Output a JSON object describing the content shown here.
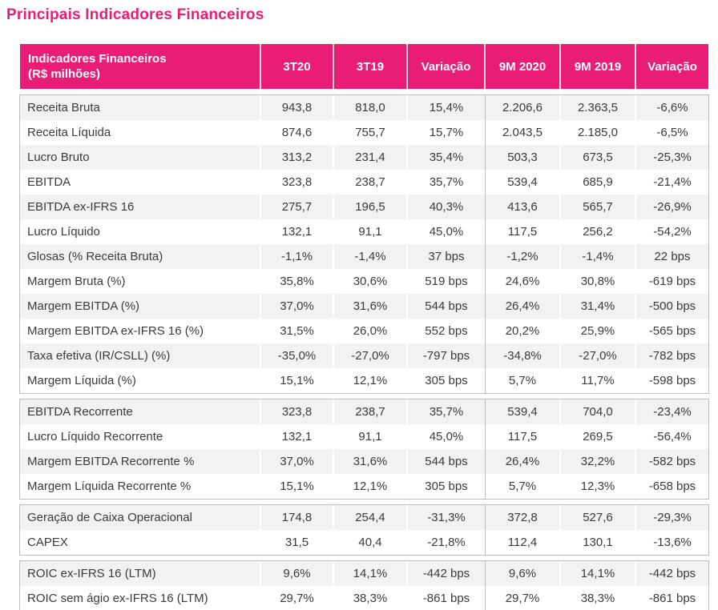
{
  "page": {
    "title": "Principais Indicadores Financeiros"
  },
  "theme": {
    "accent": "#E91D75",
    "stripe": "#F2F2F2",
    "border": "#BDBDBD",
    "text": "#3B3B3B"
  },
  "table": {
    "header": {
      "indicator": "Indicadores Financeiros\n(R$ milhões)",
      "columns": [
        "3T20",
        "3T19",
        "Variação",
        "9M 2020",
        "9M 2019",
        "Variação"
      ]
    },
    "sections": [
      {
        "rows": [
          {
            "label": "Receita Bruta",
            "values": [
              "943,8",
              "818,0",
              "15,4%",
              "2.206,6",
              "2.363,5",
              "-6,6%"
            ]
          },
          {
            "label": "Receita Líquida",
            "values": [
              "874,6",
              "755,7",
              "15,7%",
              "2.043,5",
              "2.185,0",
              "-6,5%"
            ]
          },
          {
            "label": "Lucro Bruto",
            "values": [
              "313,2",
              "231,4",
              "35,4%",
              "503,3",
              "673,5",
              "-25,3%"
            ]
          },
          {
            "label": "EBITDA",
            "values": [
              "323,8",
              "238,7",
              "35,7%",
              "539,4",
              "685,9",
              "-21,4%"
            ]
          },
          {
            "label": "EBITDA ex-IFRS 16",
            "values": [
              "275,7",
              "196,5",
              "40,3%",
              "413,6",
              "565,7",
              "-26,9%"
            ]
          },
          {
            "label": "Lucro Líquido",
            "values": [
              "132,1",
              "91,1",
              "45,0%",
              "117,5",
              "256,2",
              "-54,2%"
            ]
          },
          {
            "label": "Glosas (% Receita Bruta)",
            "values": [
              "-1,1%",
              "-1,4%",
              "37 bps",
              "-1,2%",
              "-1,4%",
              "22 bps"
            ]
          },
          {
            "label": "Margem Bruta (%)",
            "values": [
              "35,8%",
              "30,6%",
              "519 bps",
              "24,6%",
              "30,8%",
              "-619 bps"
            ]
          },
          {
            "label": "Margem EBITDA (%)",
            "values": [
              "37,0%",
              "31,6%",
              "544 bps",
              "26,4%",
              "31,4%",
              "-500 bps"
            ]
          },
          {
            "label": "Margem EBITDA ex-IFRS 16 (%)",
            "values": [
              "31,5%",
              "26,0%",
              "552 bps",
              "20,2%",
              "25,9%",
              "-565 bps"
            ]
          },
          {
            "label": "Taxa efetiva (IR/CSLL) (%)",
            "values": [
              "-35,0%",
              "-27,0%",
              "-797 bps",
              "-34,8%",
              "-27,0%",
              "-782 bps"
            ]
          },
          {
            "label": "Margem Líquida (%)",
            "values": [
              "15,1%",
              "12,1%",
              "305 bps",
              "5,7%",
              "11,7%",
              "-598 bps"
            ]
          }
        ]
      },
      {
        "rows": [
          {
            "label": "EBITDA Recorrente",
            "values": [
              "323,8",
              "238,7",
              "35,7%",
              "539,4",
              "704,0",
              "-23,4%"
            ]
          },
          {
            "label": "Lucro Líquido Recorrente",
            "values": [
              "132,1",
              "91,1",
              "45,0%",
              "117,5",
              "269,5",
              "-56,4%"
            ]
          },
          {
            "label": "Margem EBITDA Recorrente %",
            "values": [
              "37,0%",
              "31,6%",
              "544 bps",
              "26,4%",
              "32,2%",
              "-582 bps"
            ]
          },
          {
            "label": "Margem Líquida Recorrente %",
            "values": [
              "15,1%",
              "12,1%",
              "305 bps",
              "5,7%",
              "12,3%",
              "-658 bps"
            ]
          }
        ]
      },
      {
        "rows": [
          {
            "label": "Geração de Caixa Operacional",
            "values": [
              "174,8",
              "254,4",
              "-31,3%",
              "372,8",
              "527,6",
              "-29,3%"
            ]
          },
          {
            "label": "CAPEX",
            "values": [
              "31,5",
              "40,4",
              "-21,8%",
              "112,4",
              "130,1",
              "-13,6%"
            ]
          }
        ]
      },
      {
        "rows": [
          {
            "label": "ROIC ex-IFRS 16 (LTM)",
            "values": [
              "9,6%",
              "14,1%",
              "-442 bps",
              "9,6%",
              "14,1%",
              "-442 bps"
            ]
          },
          {
            "label": "ROIC sem ágio ex-IFRS 16 (LTM)",
            "values": [
              "29,7%",
              "38,3%",
              "-861 bps",
              "29,7%",
              "38,3%",
              "-861 bps"
            ]
          }
        ]
      }
    ]
  }
}
